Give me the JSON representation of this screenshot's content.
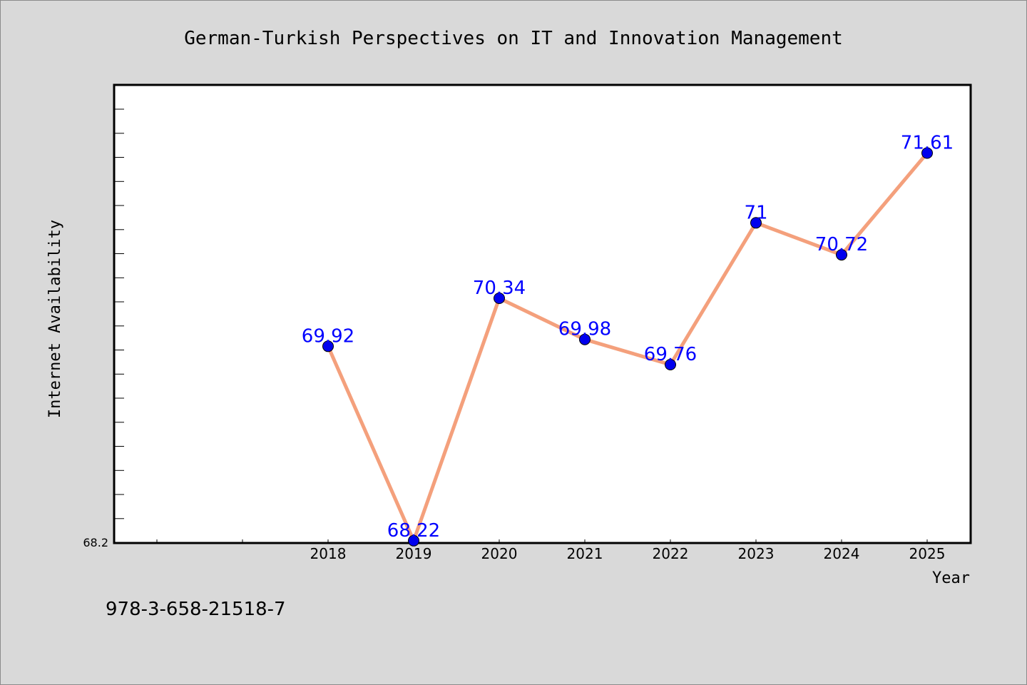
{
  "chart_data": {
    "type": "line",
    "title": "German-Turkish Perspectives on IT and Innovation Management",
    "xlabel": "Year",
    "ylabel": "Internet Availability",
    "categories": [
      "2018",
      "2019",
      "2020",
      "2021",
      "2022",
      "2023",
      "2024",
      "2025"
    ],
    "series": [
      {
        "values": [
          69.92,
          68.22,
          70.34,
          69.98,
          69.76,
          71,
          70.72,
          71.61
        ],
        "data_labels": [
          "69.92",
          "68.22",
          "70.34",
          "69.98",
          "69.76",
          "71",
          "70.72",
          "71.61"
        ]
      }
    ],
    "ylim": [
      68.2,
      72.0
    ],
    "y_tick_labels": [
      "68.2"
    ],
    "grid": false,
    "line_color": "#f4a07c",
    "marker_color": "#0000ee",
    "data_label_color": "#0000ff",
    "background_color": "#d9d9d9",
    "plot_background_color": "#ffffff"
  },
  "footer": {
    "isbn": "978-3-658-21518-7"
  }
}
